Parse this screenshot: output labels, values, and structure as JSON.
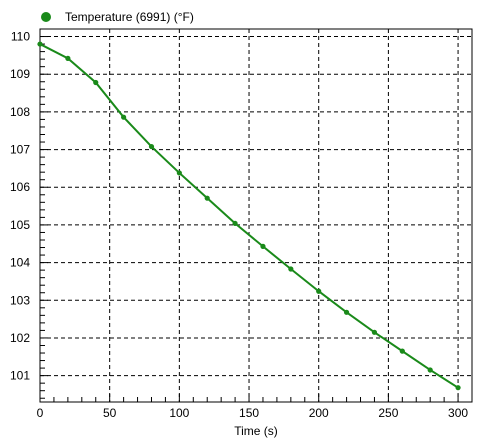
{
  "legend": {
    "label": "Temperature  (6991) (°F)",
    "marker_color": "#1a8a1a"
  },
  "chart_data": {
    "type": "line",
    "xlabel": "Time (s)",
    "ylabel": "",
    "xlim": [
      0,
      310
    ],
    "ylim": [
      100.3,
      110.2
    ],
    "x_ticks": [
      0,
      50,
      100,
      150,
      200,
      250,
      300
    ],
    "x_tick_labels": [
      "0",
      "50",
      "100",
      "150",
      "200",
      "250",
      "300"
    ],
    "y_ticks": [
      101,
      102,
      103,
      104,
      105,
      106,
      107,
      108,
      109,
      110
    ],
    "y_tick_labels": [
      "101",
      "102",
      "103",
      "104",
      "105",
      "106",
      "107",
      "108",
      "109",
      "110"
    ],
    "grid": true,
    "legend_position": "top-left",
    "series": [
      {
        "name": "Temperature  (6991) (°F)",
        "color": "#1a8a1a",
        "x": [
          0,
          20,
          40,
          60,
          80,
          100,
          120,
          140,
          160,
          180,
          200,
          220,
          240,
          260,
          280,
          300
        ],
        "y": [
          109.8,
          109.42,
          108.78,
          107.86,
          107.08,
          106.38,
          105.71,
          105.04,
          104.43,
          103.83,
          103.24,
          102.68,
          102.15,
          101.65,
          101.15,
          100.68
        ]
      }
    ]
  }
}
